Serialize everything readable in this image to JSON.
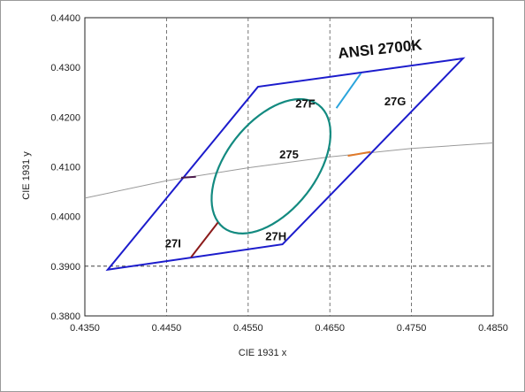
{
  "chart_data": {
    "type": "scatter",
    "title": "ANSI 2700K",
    "xlabel": "CIE 1931 x",
    "ylabel": "CIE 1931 y",
    "xlim": [
      0.435,
      0.485
    ],
    "ylim": [
      0.38,
      0.44
    ],
    "x_ticks": [
      "0.4350",
      "0.4450",
      "0.4550",
      "0.4650",
      "0.4750",
      "0.4850"
    ],
    "y_ticks": [
      "0.3800",
      "0.3900",
      "0.4000",
      "0.4100",
      "0.4200",
      "0.4300",
      "0.4400"
    ],
    "x_tick_values": [
      0.435,
      0.445,
      0.455,
      0.465,
      0.475,
      0.485
    ],
    "y_tick_values": [
      0.38,
      0.39,
      0.4,
      0.41,
      0.42,
      0.43,
      0.44
    ],
    "grid": {
      "vertical_dashed": [
        0.445,
        0.455,
        0.465,
        0.475
      ],
      "horizontal_dashed": [
        0.39
      ]
    },
    "quadrangle": {
      "color": "#1c1ccc",
      "points": [
        [
          0.4378,
          0.3893
        ],
        [
          0.4562,
          0.4261
        ],
        [
          0.4813,
          0.4318
        ],
        [
          0.4592,
          0.3944
        ]
      ]
    },
    "blackbody_locus": {
      "color": "#9a9a9a",
      "points": [
        [
          0.435,
          0.4037
        ],
        [
          0.445,
          0.4072
        ],
        [
          0.455,
          0.4098
        ],
        [
          0.465,
          0.412
        ],
        [
          0.475,
          0.4137
        ],
        [
          0.485,
          0.4148
        ]
      ]
    },
    "ellipse": {
      "label": "275",
      "color": "#138a80",
      "center": [
        0.4578,
        0.4101
      ],
      "semi_axes": [
        0.0095,
        0.0055
      ],
      "rotation_deg": -52
    },
    "segments": [
      {
        "color": "#2aa4dc",
        "points": [
          [
            0.4658,
            0.4218
          ],
          [
            0.4688,
            0.4288
          ]
        ]
      },
      {
        "color": "#e07a2a",
        "points": [
          [
            0.4672,
            0.4122
          ],
          [
            0.47,
            0.413
          ]
        ]
      },
      {
        "color": "#8b1a1a",
        "points": [
          [
            0.448,
            0.3918
          ],
          [
            0.4513,
            0.3988
          ]
        ]
      },
      {
        "color": "#4b1a4b",
        "points": [
          [
            0.4468,
            0.4078
          ],
          [
            0.4486,
            0.408
          ]
        ]
      }
    ],
    "region_labels": [
      {
        "text": "27F",
        "x": 0.462,
        "y": 0.4219
      },
      {
        "text": "27G",
        "x": 0.473,
        "y": 0.4224
      },
      {
        "text": "275",
        "x": 0.46,
        "y": 0.4117
      },
      {
        "text": "27H",
        "x": 0.4584,
        "y": 0.3952
      },
      {
        "text": "27I",
        "x": 0.4458,
        "y": 0.3938
      }
    ],
    "title_position": [
      0.4712,
      0.4327
    ]
  }
}
